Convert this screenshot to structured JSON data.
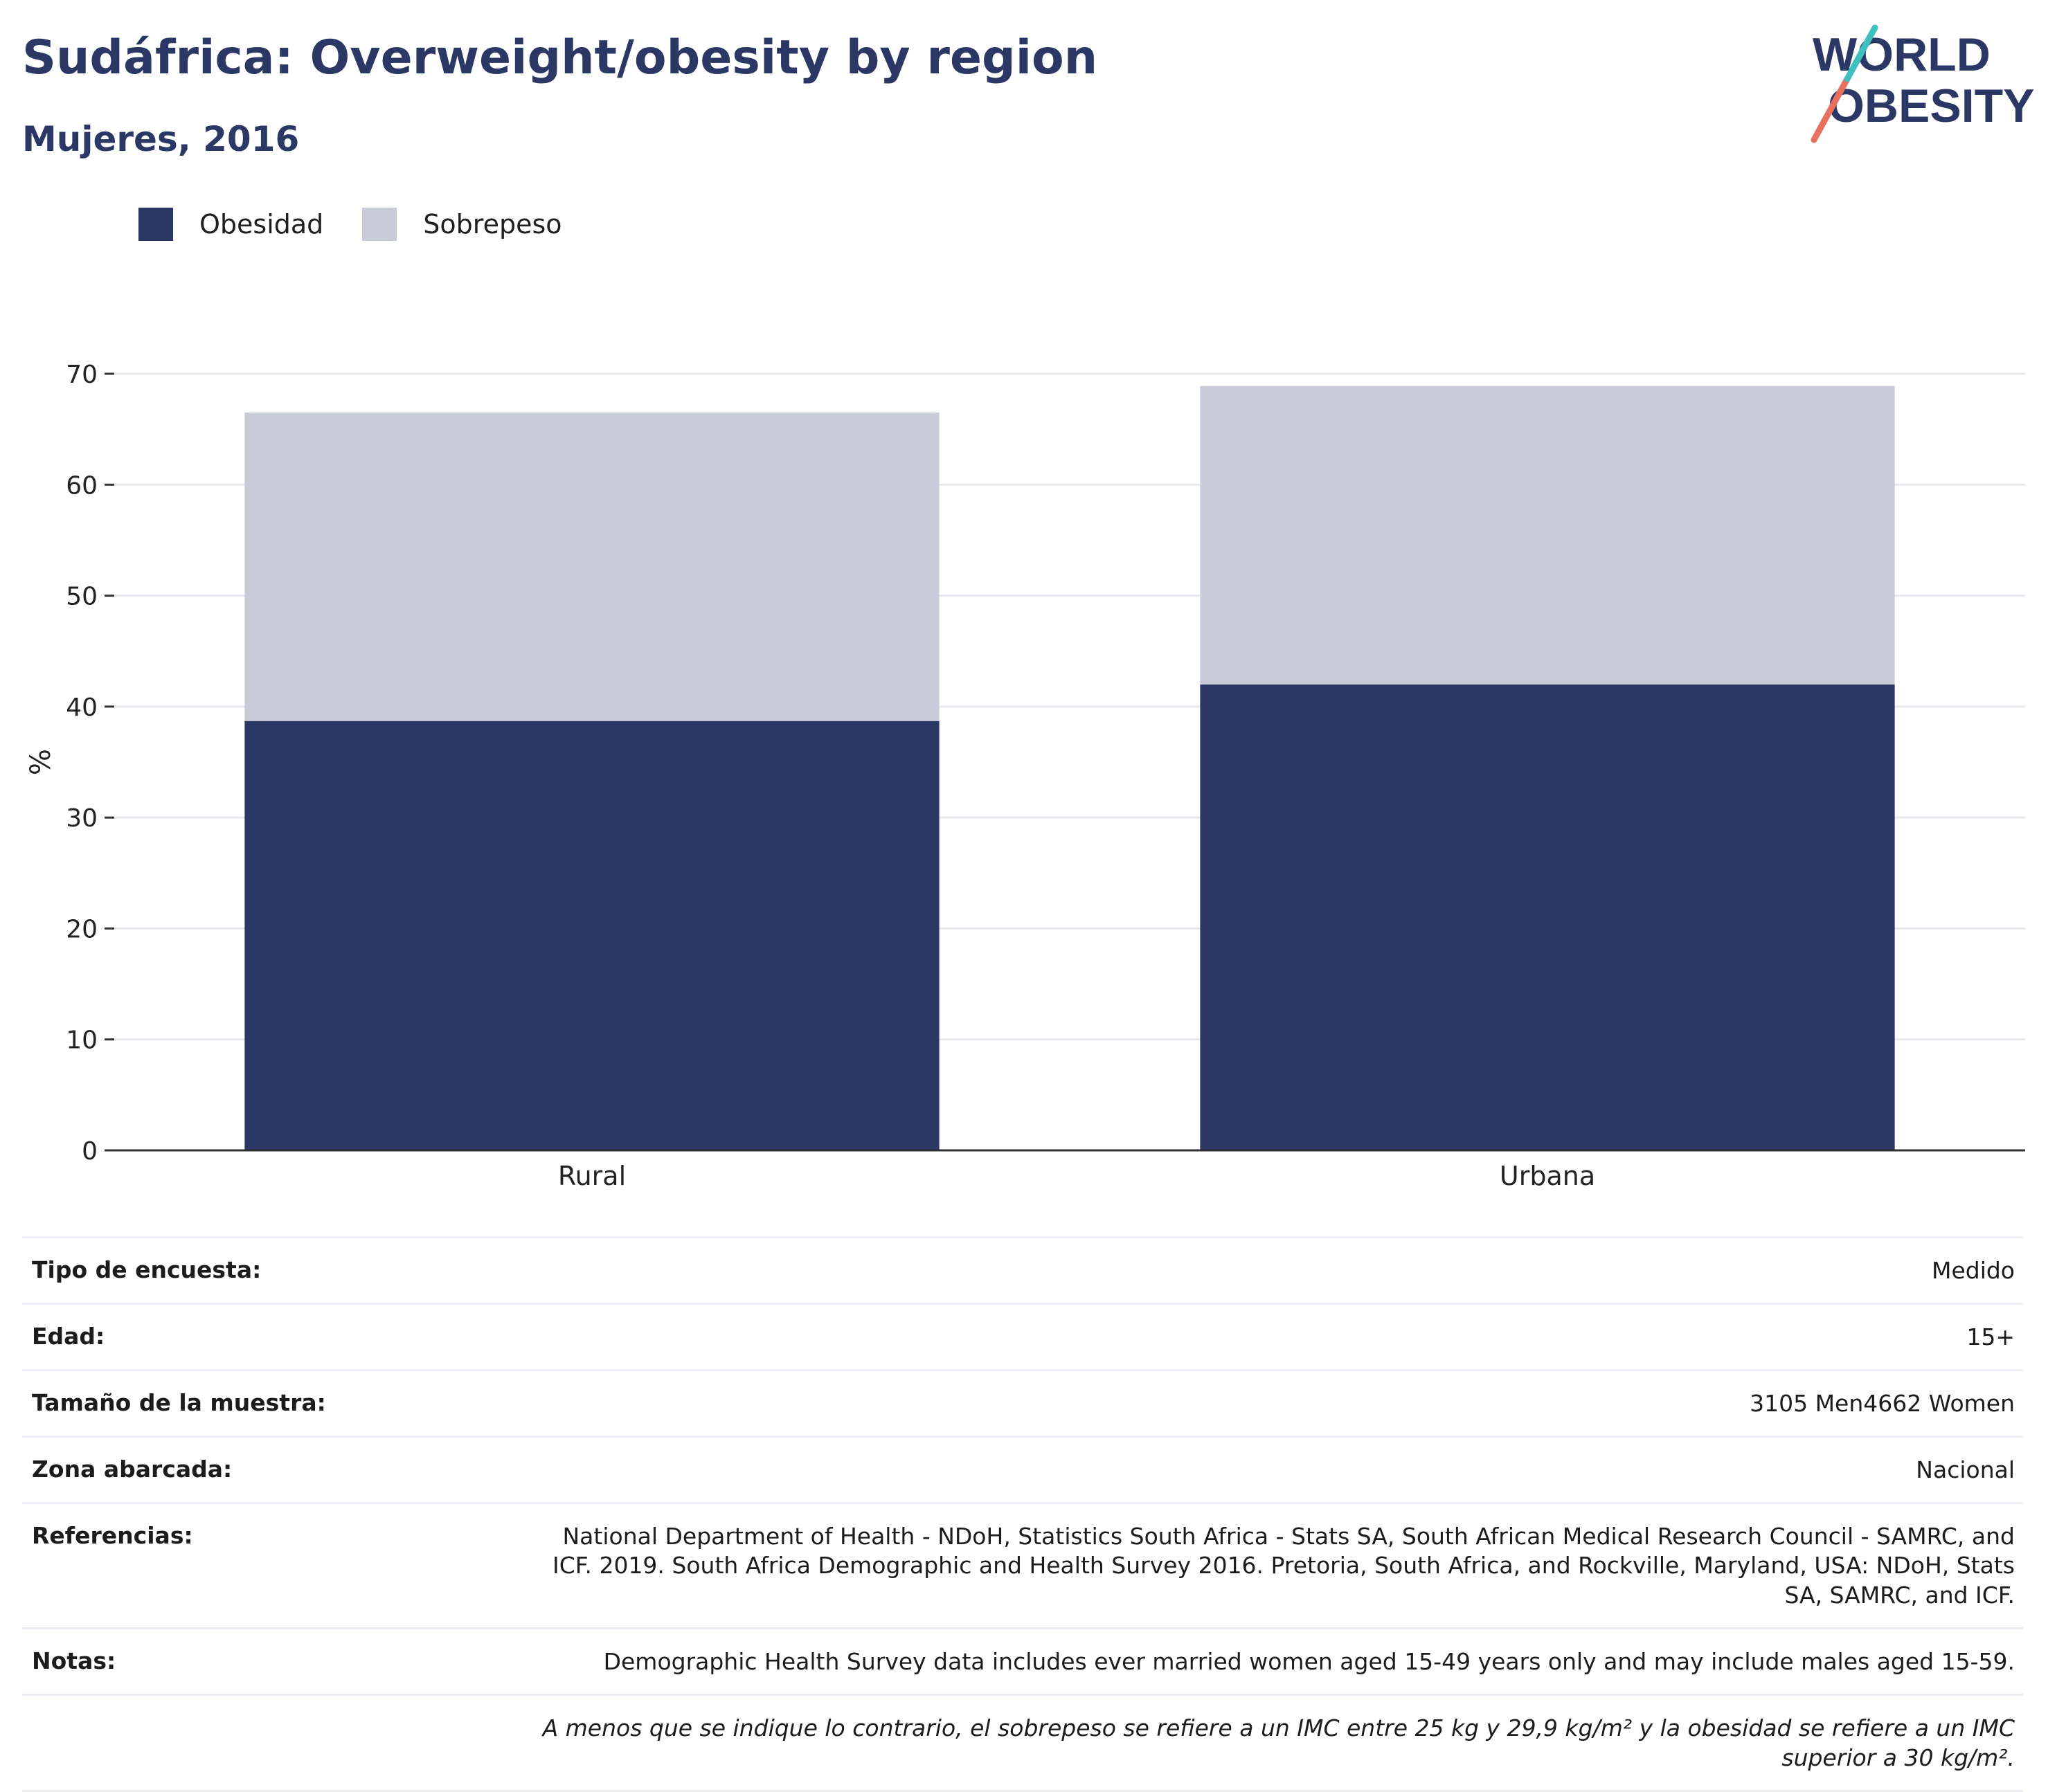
{
  "header": {
    "title": "Sudáfrica: Overweight/obesity by region",
    "subtitle": "Mujeres, 2016"
  },
  "logo": {
    "line1": "WORLD",
    "line2": "OBESITY"
  },
  "legend": [
    {
      "label": "Obesidad",
      "color": "#2b3764"
    },
    {
      "label": "Sobrepeso",
      "color": "#c9ccd8"
    }
  ],
  "chart_data": {
    "type": "bar",
    "stacked": true,
    "categories": [
      "Rural",
      "Urbana"
    ],
    "series": [
      {
        "name": "Obesidad",
        "color": "#2b3764",
        "values": [
          38.7,
          42.0
        ]
      },
      {
        "name": "Sobrepeso",
        "color": "#c9ccd8",
        "values": [
          27.8,
          26.9
        ]
      }
    ],
    "ylabel": "%",
    "ylim": [
      0,
      70
    ],
    "yticks": [
      0,
      10,
      20,
      30,
      40,
      50,
      60,
      70
    ],
    "grid": true,
    "legend_position": "top-left"
  },
  "meta": [
    {
      "key": "Tipo de encuesta:",
      "value": "Medido"
    },
    {
      "key": "Edad:",
      "value": "15+"
    },
    {
      "key": "Tamaño de la muestra:",
      "value": "3105 Men4662 Women"
    },
    {
      "key": "Zona abarcada:",
      "value": "Nacional"
    },
    {
      "key": "Referencias:",
      "value": "National Department of Health - NDoH, Statistics South Africa - Stats SA, South African Medical Research Council - SAMRC, and ICF. 2019. South Africa Demographic and Health Survey 2016. Pretoria, South Africa, and Rockville, Maryland, USA: NDoH, Stats SA, SAMRC, and ICF."
    },
    {
      "key": "Notas:",
      "value": "Demographic Health Survey data includes ever married women aged 15-49 years only and may include males aged 15-59."
    }
  ],
  "footnote": "A menos que se indique lo contrario, el sobrepeso se refiere a un IMC entre 25 kg y 29,9 kg/m² y la obesidad se refiere a un IMC superior a 30 kg/m²."
}
